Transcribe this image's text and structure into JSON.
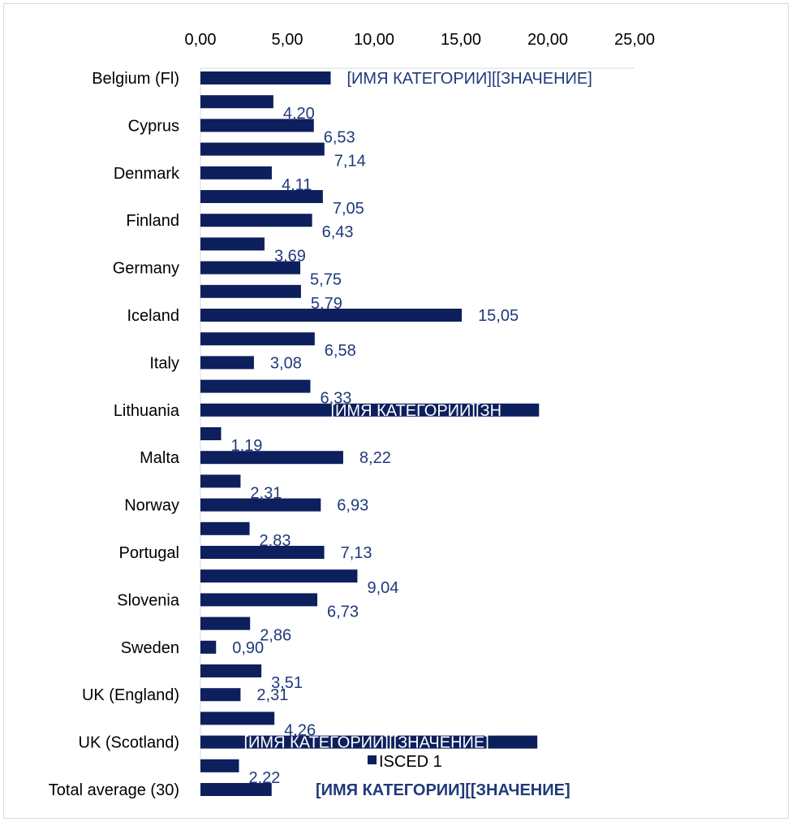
{
  "chart_data": {
    "type": "bar",
    "orientation": "horizontal",
    "x_ticks": [
      "0,00",
      "5,00",
      "10,00",
      "15,00",
      "20,00",
      "25,00"
    ],
    "xlim": [
      0,
      25
    ],
    "grid": false,
    "legend_position": "bottom",
    "colors": {
      "bar": "#0d1f5c",
      "label": "#1f3a7a",
      "inside_label": "#ffffff"
    },
    "series": [
      {
        "name": "ISCED 1",
        "points": [
          {
            "category": "Belgium (Fl)",
            "value": 7.5,
            "label": "[ИМЯ КАТЕГОРИИ][[ЗНАЧЕНИЕ]",
            "label_pos": "outside",
            "bold": false
          },
          {
            "category": "",
            "value": 4.2,
            "label": "4,20",
            "label_pos": "below"
          },
          {
            "category": "Cyprus",
            "value": 6.53,
            "label": "6,53",
            "label_pos": "below"
          },
          {
            "category": "",
            "value": 7.14,
            "label": "7,14",
            "label_pos": "below"
          },
          {
            "category": "Denmark",
            "value": 4.11,
            "label": "4,11",
            "label_pos": "below"
          },
          {
            "category": "",
            "value": 7.05,
            "label": "7,05",
            "label_pos": "below"
          },
          {
            "category": "Finland",
            "value": 6.43,
            "label": "6,43",
            "label_pos": "below"
          },
          {
            "category": "",
            "value": 3.69,
            "label": "3,69",
            "label_pos": "below"
          },
          {
            "category": "Germany",
            "value": 5.75,
            "label": "5,75",
            "label_pos": "below"
          },
          {
            "category": "",
            "value": 5.79,
            "label": "5,79",
            "label_pos": "below"
          },
          {
            "category": "Iceland",
            "value": 15.05,
            "label": "15,05",
            "label_pos": "outside"
          },
          {
            "category": "",
            "value": 6.58,
            "label": "6,58",
            "label_pos": "below"
          },
          {
            "category": "Italy",
            "value": 3.08,
            "label": "3,08",
            "label_pos": "outside"
          },
          {
            "category": "",
            "value": 6.33,
            "label": "6,33",
            "label_pos": "below"
          },
          {
            "category": "Lithuania",
            "value": 19.5,
            "label": "[ИМЯ КАТЕГОРИИ][ЗН",
            "label_pos": "inside",
            "label_offset": 7.5,
            "bold": false
          },
          {
            "category": "",
            "value": 1.19,
            "label": "1,19",
            "label_pos": "below"
          },
          {
            "category": "Malta",
            "value": 8.22,
            "label": "8,22",
            "label_pos": "outside"
          },
          {
            "category": "",
            "value": 2.31,
            "label": "2,31",
            "label_pos": "below"
          },
          {
            "category": "Norway",
            "value": 6.93,
            "label": "6,93",
            "label_pos": "outside"
          },
          {
            "category": "",
            "value": 2.83,
            "label": "2,83",
            "label_pos": "below"
          },
          {
            "category": "Portugal",
            "value": 7.13,
            "label": "7,13",
            "label_pos": "outside"
          },
          {
            "category": "",
            "value": 9.04,
            "label": "9,04",
            "label_pos": "below"
          },
          {
            "category": "Slovenia",
            "value": 6.73,
            "label": "6,73",
            "label_pos": "below"
          },
          {
            "category": "",
            "value": 2.86,
            "label": "2,86",
            "label_pos": "below"
          },
          {
            "category": "Sweden",
            "value": 0.9,
            "label": "0,90",
            "label_pos": "outside"
          },
          {
            "category": "",
            "value": 3.51,
            "label": "3,51",
            "label_pos": "below"
          },
          {
            "category": "UK (England)",
            "value": 2.31,
            "label": "2,31",
            "label_pos": "outside"
          },
          {
            "category": "",
            "value": 4.26,
            "label": "4,26",
            "label_pos": "below"
          },
          {
            "category": "UK (Scotland)",
            "value": 19.4,
            "label": "[ИМЯ КАТЕГОРИИ][[ЗНАЧЕНИЕ]",
            "label_pos": "inside",
            "label_offset": 2.5,
            "bold": false
          },
          {
            "category": "",
            "value": 2.22,
            "label": "2,22",
            "label_pos": "below"
          },
          {
            "category": "Total average (30)",
            "value": 4.1,
            "label": "[ИМЯ КАТЕГОРИИ][[ЗНАЧЕНИЕ]",
            "label_pos": "outside",
            "label_offset": 1.6,
            "bold": true
          }
        ]
      }
    ]
  }
}
